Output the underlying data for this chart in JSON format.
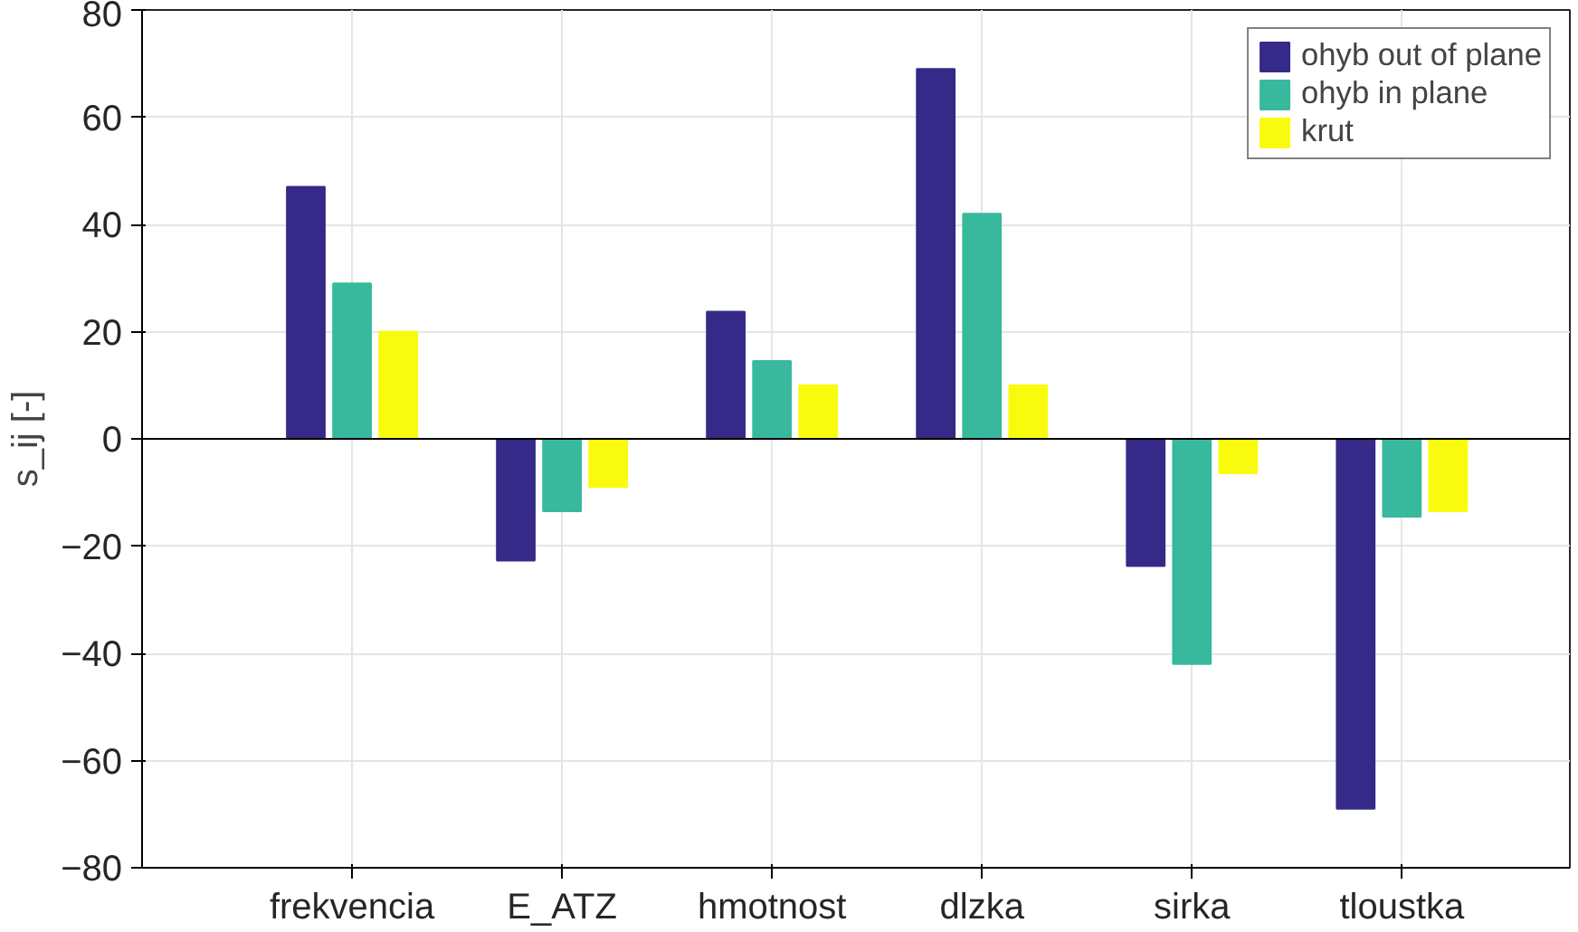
{
  "chart_data": {
    "type": "bar",
    "ylabel": "s_ij [-]",
    "categories": [
      "frekvencia",
      "E_ATZ",
      "hmotnost",
      "dlzka",
      "sirka",
      "tloustka"
    ],
    "series": [
      {
        "name": "ohyb out of plane",
        "color": "#352a87",
        "values": [
          47,
          -22.7,
          23.7,
          69,
          -23.7,
          -69
        ]
      },
      {
        "name": "ohyb in plane",
        "color": "#38b99e",
        "values": [
          29,
          -13.5,
          14.5,
          42,
          -42,
          -14.5
        ]
      },
      {
        "name": "krut",
        "color": "#f9fb0e",
        "values": [
          20,
          -9,
          10,
          10,
          -6.4,
          -13.5
        ]
      }
    ],
    "ylim": [
      -80,
      80
    ],
    "yticks": [
      -80,
      -60,
      -40,
      -20,
      0,
      20,
      40,
      60,
      80
    ],
    "grid": true,
    "legend": "top right"
  }
}
